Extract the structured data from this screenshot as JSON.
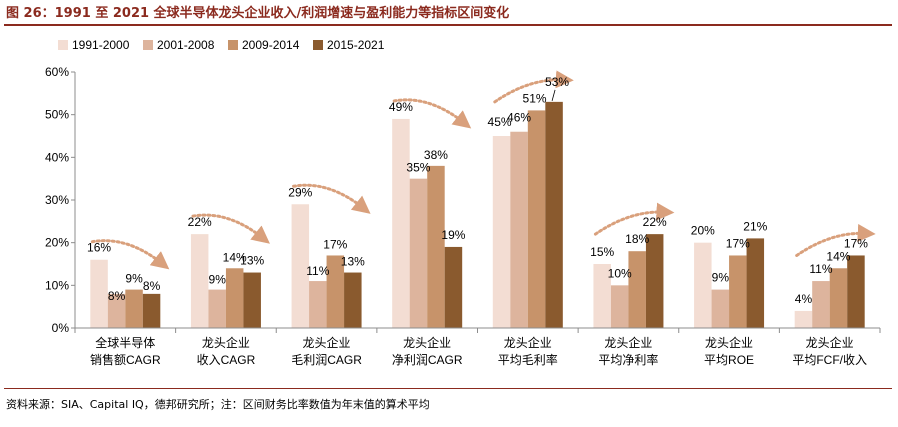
{
  "title": "图 26：1991 至 2021 全球半导体龙头企业收入/利润增速与盈利能力等指标区间变化",
  "source": "资料来源：SIA、Capital IQ，德邦研究所；注：区间财务比率数值为年末值的算术平均",
  "colors": {
    "title": "#8b2a1e",
    "series": [
      "#f3ddd3",
      "#ddb49d",
      "#c7936a",
      "#8a5a2e"
    ],
    "arrow": "#d9a07c",
    "axis": "#8c8c8c"
  },
  "chart_data": {
    "type": "bar",
    "y_unit": "%",
    "ylim": [
      0,
      60
    ],
    "yticks": [
      "0%",
      "10%",
      "20%",
      "30%",
      "40%",
      "50%",
      "60%"
    ],
    "legend_position": "top-left",
    "categories": [
      [
        "全球半导体",
        "销售额CAGR"
      ],
      [
        "龙头企业",
        "收入CAGR"
      ],
      [
        "龙头企业",
        "毛利润CAGR"
      ],
      [
        "龙头企业",
        "净利润CAGR"
      ],
      [
        "龙头企业",
        "平均毛利率"
      ],
      [
        "龙头企业",
        "平均净利率"
      ],
      [
        "龙头企业",
        "平均ROE"
      ],
      [
        "龙头企业",
        "平均FCF/收入"
      ]
    ],
    "series": [
      {
        "name": "1991-2000",
        "values": [
          16,
          22,
          29,
          49,
          45,
          15,
          20,
          4
        ],
        "labels": [
          "16%",
          "22%",
          "29%",
          "49%",
          "45%",
          "15%",
          "20%",
          "4%"
        ]
      },
      {
        "name": "2001-2008",
        "values": [
          8,
          9,
          11,
          35,
          46,
          10,
          9,
          11
        ],
        "labels": [
          "8%",
          "9%",
          "11%",
          "35%",
          "46%",
          "10%",
          "9%",
          "11%"
        ]
      },
      {
        "name": "2009-2014",
        "values": [
          9,
          14,
          17,
          38,
          51,
          18,
          17,
          14
        ],
        "labels": [
          "9%",
          "14%",
          "17%",
          "38%",
          "51%",
          "18%",
          "17%",
          "14%"
        ]
      },
      {
        "name": "2015-2021",
        "values": [
          8,
          13,
          13,
          19,
          53,
          22,
          21,
          17
        ],
        "labels": [
          "8%",
          "13%",
          "13%",
          "19%",
          "53%",
          "22%",
          "21%",
          "17%"
        ]
      }
    ],
    "trend_arrows": [
      "down",
      "down",
      "down",
      "down",
      "up",
      "up",
      "none",
      "up"
    ]
  }
}
